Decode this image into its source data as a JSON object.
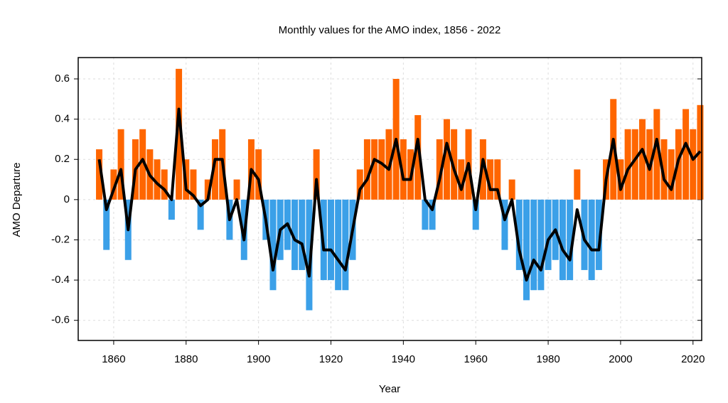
{
  "chart_data": {
    "type": "bar-line",
    "title": "Monthly values for the AMO index, 1856 - 2022",
    "xlabel": "Year",
    "ylabel": "AMO Departure",
    "x": [
      1856,
      1858,
      1860,
      1862,
      1864,
      1866,
      1868,
      1870,
      1872,
      1874,
      1876,
      1878,
      1880,
      1882,
      1884,
      1886,
      1888,
      1890,
      1892,
      1894,
      1896,
      1898,
      1900,
      1902,
      1904,
      1906,
      1908,
      1910,
      1912,
      1914,
      1916,
      1918,
      1920,
      1922,
      1924,
      1926,
      1928,
      1930,
      1932,
      1934,
      1936,
      1938,
      1940,
      1942,
      1944,
      1946,
      1948,
      1950,
      1952,
      1954,
      1956,
      1958,
      1960,
      1962,
      1964,
      1966,
      1968,
      1970,
      1972,
      1974,
      1976,
      1978,
      1980,
      1982,
      1984,
      1986,
      1988,
      1990,
      1992,
      1994,
      1996,
      1998,
      2000,
      2002,
      2004,
      2006,
      2008,
      2010,
      2012,
      2014,
      2016,
      2018,
      2020,
      2022
    ],
    "series": [
      {
        "positive_color": "#ff6600",
        "negative_color": "#3ba0e8",
        "values": [
          0.25,
          -0.25,
          0.15,
          0.35,
          -0.3,
          0.3,
          0.35,
          0.25,
          0.2,
          0.15,
          -0.1,
          0.65,
          0.2,
          0.15,
          -0.15,
          0.1,
          0.3,
          0.35,
          -0.2,
          0.1,
          -0.3,
          0.3,
          0.25,
          -0.2,
          -0.45,
          -0.3,
          -0.25,
          -0.35,
          -0.35,
          -0.55,
          0.25,
          -0.4,
          -0.4,
          -0.45,
          -0.45,
          -0.3,
          0.15,
          0.3,
          0.3,
          0.3,
          0.35,
          0.6,
          0.3,
          0.25,
          0.42,
          -0.15,
          -0.15,
          0.3,
          0.4,
          0.35,
          0.2,
          0.35,
          -0.15,
          0.3,
          0.2,
          0.2,
          -0.25,
          0.1,
          -0.35,
          -0.5,
          -0.45,
          -0.45,
          -0.35,
          -0.3,
          -0.4,
          -0.4,
          0.15,
          -0.35,
          -0.4,
          -0.35,
          0.2,
          0.5,
          0.2,
          0.35,
          0.35,
          0.4,
          0.35,
          0.45,
          0.3,
          0.25,
          0.35,
          0.45,
          0.35,
          0.47
        ]
      },
      {
        "color": "#000000",
        "values": [
          0.2,
          -0.05,
          0.05,
          0.15,
          -0.15,
          0.15,
          0.2,
          0.12,
          0.08,
          0.05,
          0.0,
          0.45,
          0.05,
          0.02,
          -0.03,
          0.0,
          0.2,
          0.2,
          -0.1,
          0.0,
          -0.2,
          0.15,
          0.1,
          -0.1,
          -0.35,
          -0.15,
          -0.12,
          -0.2,
          -0.22,
          -0.38,
          0.1,
          -0.25,
          -0.25,
          -0.3,
          -0.35,
          -0.15,
          0.05,
          0.1,
          0.2,
          0.18,
          0.15,
          0.3,
          0.1,
          0.1,
          0.3,
          0.0,
          -0.05,
          0.1,
          0.28,
          0.15,
          0.05,
          0.18,
          -0.05,
          0.2,
          0.05,
          0.05,
          -0.1,
          0.0,
          -0.25,
          -0.4,
          -0.3,
          -0.35,
          -0.2,
          -0.15,
          -0.25,
          -0.3,
          -0.05,
          -0.2,
          -0.25,
          -0.25,
          0.1,
          0.3,
          0.05,
          0.15,
          0.2,
          0.25,
          0.15,
          0.3,
          0.1,
          0.05,
          0.2,
          0.28,
          0.2,
          0.24
        ]
      }
    ],
    "xlim": [
      1850.2,
      2022.4
    ],
    "ylim": [
      -0.7,
      0.706
    ],
    "xticks": [
      1860,
      1880,
      1900,
      1920,
      1940,
      1960,
      1980,
      2000,
      2020
    ],
    "yticks": [
      -0.6,
      -0.4,
      -0.2,
      0,
      0.2,
      0.4,
      0.6
    ],
    "grid": true
  }
}
